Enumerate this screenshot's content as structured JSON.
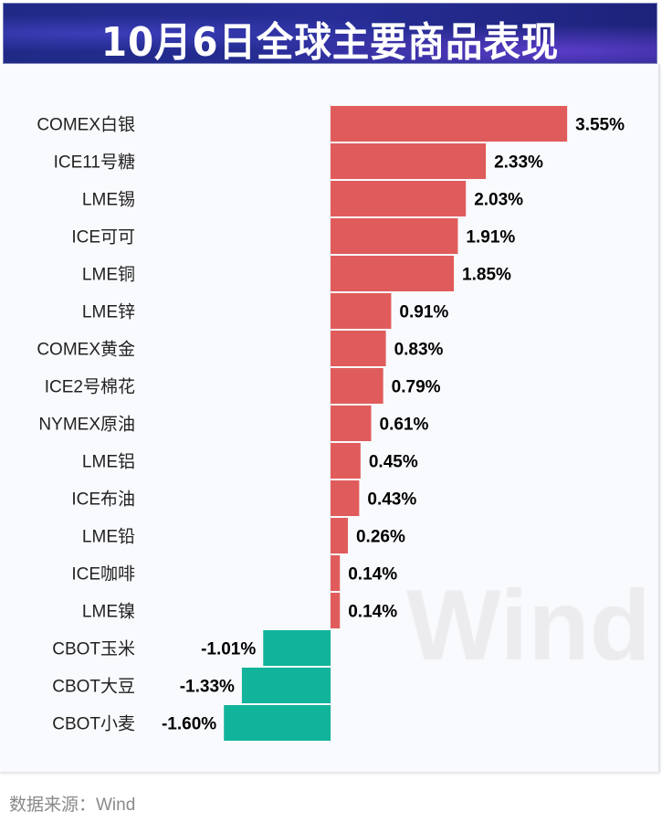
{
  "header": {
    "title": "10月6日全球主要商品表现"
  },
  "watermark": "Wind",
  "source": "数据来源：Wind",
  "colors": {
    "positive": "#e05c5c",
    "negative": "#12b39b",
    "header_bg": "#1f2a86"
  },
  "chart_data": {
    "type": "bar",
    "orientation": "horizontal",
    "categories": [
      "COMEX白银",
      "ICE11号糖",
      "LME锡",
      "ICE可可",
      "LME铜",
      "LME锌",
      "COMEX黄金",
      "ICE2号棉花",
      "NYMEX原油",
      "LME铝",
      "ICE布油",
      "LME铅",
      "ICE咖啡",
      "LME镍",
      "CBOT玉米",
      "CBOT大豆",
      "CBOT小麦"
    ],
    "values": [
      3.55,
      2.33,
      2.03,
      1.91,
      1.85,
      0.91,
      0.83,
      0.79,
      0.61,
      0.45,
      0.43,
      0.26,
      0.14,
      0.14,
      -1.01,
      -1.33,
      -1.6
    ],
    "labels": [
      "3.55%",
      "2.33%",
      "2.03%",
      "1.91%",
      "1.85%",
      "0.91%",
      "0.83%",
      "0.79%",
      "0.61%",
      "0.45%",
      "0.43%",
      "0.26%",
      "0.14%",
      "0.14%",
      "-1.01%",
      "-1.33%",
      "-1.60%"
    ],
    "unit": "%",
    "grid": false,
    "legend": "none"
  }
}
